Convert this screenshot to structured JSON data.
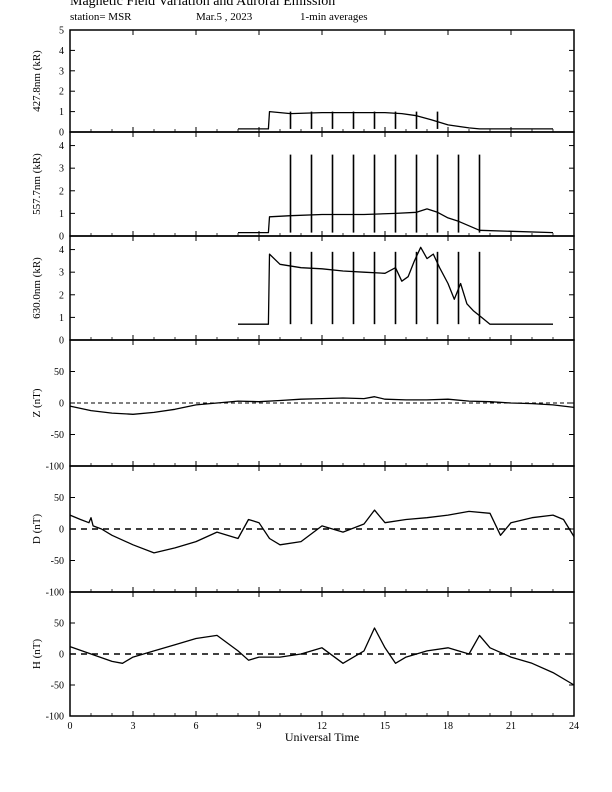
{
  "header": {
    "title": "Magnetic Field Variation and Auroral Emission",
    "station": "station= MSR",
    "date": "Mar.5 , 2023",
    "averaging": "1-min averages"
  },
  "chart_data": [
    {
      "type": "line",
      "ylabel": "427.8nm (kR)",
      "ylim": [
        0,
        5
      ],
      "yticks": [
        0,
        1,
        2,
        3,
        4,
        5
      ],
      "x": [
        8.0,
        9.45,
        9.5,
        10.5,
        12.0,
        13.5,
        15.0,
        15.8,
        16.5,
        17.2,
        18.0,
        19.0,
        19.5,
        23.0
      ],
      "y": [
        0.15,
        0.15,
        1.0,
        0.9,
        0.95,
        0.95,
        0.95,
        0.9,
        0.8,
        0.6,
        0.35,
        0.2,
        0.15,
        0.15
      ],
      "spikes_x": [
        10.5,
        11.5,
        12.5,
        13.5,
        14.5,
        15.5,
        16.5,
        17.5
      ],
      "spike_top": 1.0
    },
    {
      "type": "line",
      "ylabel": "557.7nm (kR)",
      "ylim": [
        0,
        4.6
      ],
      "yticks": [
        0,
        1,
        2,
        3,
        4
      ],
      "x": [
        8.0,
        9.45,
        9.5,
        10.5,
        12.0,
        14.0,
        15.5,
        16.5,
        17.0,
        17.5,
        18.0,
        18.5,
        19.5,
        23.0
      ],
      "y": [
        0.15,
        0.15,
        0.85,
        0.9,
        0.95,
        0.95,
        1.0,
        1.05,
        1.2,
        1.05,
        0.8,
        0.65,
        0.25,
        0.15
      ],
      "spikes_x": [
        10.5,
        11.5,
        12.5,
        13.5,
        14.5,
        15.5,
        16.5,
        17.5,
        18.5,
        19.5
      ],
      "spike_top": 3.6
    },
    {
      "type": "line",
      "ylabel": "630.0nm (kR)",
      "ylim": [
        0,
        4.6
      ],
      "yticks": [
        0,
        1,
        2,
        3,
        4
      ],
      "x": [
        8.0,
        9.45,
        9.5,
        10.0,
        11.0,
        12.0,
        13.0,
        14.0,
        15.0,
        15.5,
        15.8,
        16.1,
        16.4,
        16.7,
        17.0,
        17.3,
        17.6,
        18.0,
        18.3,
        18.6,
        18.9,
        19.2,
        19.6,
        20.0,
        23.0
      ],
      "y": [
        0.7,
        0.7,
        3.8,
        3.35,
        3.2,
        3.15,
        3.05,
        3.0,
        2.95,
        3.2,
        2.6,
        2.8,
        3.5,
        4.1,
        3.6,
        3.8,
        3.2,
        2.5,
        1.8,
        2.5,
        1.6,
        1.3,
        1.0,
        0.7,
        0.7
      ],
      "spikes_x": [
        10.5,
        11.5,
        12.5,
        13.5,
        14.5,
        15.5,
        16.5,
        17.5,
        18.5,
        19.5
      ],
      "spike_top": 3.9
    },
    {
      "type": "line",
      "ylabel": "Z (nT)",
      "ylim": [
        -100,
        100
      ],
      "yticks": [
        -100,
        -50,
        0,
        50
      ],
      "x": [
        0,
        1,
        2,
        3,
        4,
        5,
        6,
        7,
        8,
        9,
        10,
        11,
        12,
        13,
        14,
        14.5,
        15,
        16,
        17,
        18,
        19,
        20,
        21,
        22,
        23,
        24
      ],
      "y": [
        -5,
        -12,
        -16,
        -18,
        -15,
        -10,
        -3,
        0,
        3,
        2,
        4,
        6,
        7,
        8,
        7,
        10,
        6,
        5,
        5,
        6,
        3,
        2,
        0,
        -1,
        -3,
        -7
      ]
    },
    {
      "type": "line",
      "ylabel": "D (nT)",
      "ylim": [
        -100,
        100
      ],
      "yticks": [
        -100,
        -50,
        0,
        50
      ],
      "x": [
        0,
        0.5,
        0.9,
        1.0,
        1.1,
        1.5,
        2,
        3,
        4,
        5,
        6,
        7,
        8,
        8.5,
        9,
        9.5,
        10,
        11,
        12,
        13,
        14,
        14.5,
        15,
        16,
        17,
        18,
        19,
        20,
        20.5,
        21,
        22,
        23,
        23.5,
        24
      ],
      "y": [
        22,
        15,
        10,
        18,
        5,
        0,
        -10,
        -25,
        -38,
        -30,
        -20,
        -5,
        -15,
        15,
        10,
        -15,
        -25,
        -20,
        5,
        -5,
        8,
        30,
        10,
        15,
        18,
        22,
        28,
        25,
        -10,
        10,
        18,
        22,
        15,
        -12
      ]
    },
    {
      "type": "line",
      "ylabel": "H (nT)",
      "ylim": [
        -100,
        100
      ],
      "yticks": [
        -100,
        -50,
        0,
        50
      ],
      "x": [
        0,
        1,
        2,
        2.5,
        3,
        4,
        5,
        6,
        7,
        8,
        8.5,
        9,
        10,
        11,
        12,
        13,
        14,
        14.5,
        15,
        15.5,
        16,
        17,
        18,
        19,
        19.5,
        20,
        21,
        22,
        23,
        24
      ],
      "y": [
        12,
        0,
        -12,
        -15,
        -5,
        5,
        15,
        25,
        30,
        5,
        -10,
        -5,
        -5,
        0,
        10,
        -15,
        5,
        42,
        10,
        -15,
        -5,
        5,
        10,
        0,
        30,
        10,
        -5,
        -15,
        -30,
        -50
      ]
    }
  ],
  "x_axis": {
    "label": "Universal Time",
    "ticks": [
      0,
      3,
      6,
      9,
      12,
      15,
      18,
      21,
      24
    ],
    "xlim": [
      0,
      24
    ]
  }
}
